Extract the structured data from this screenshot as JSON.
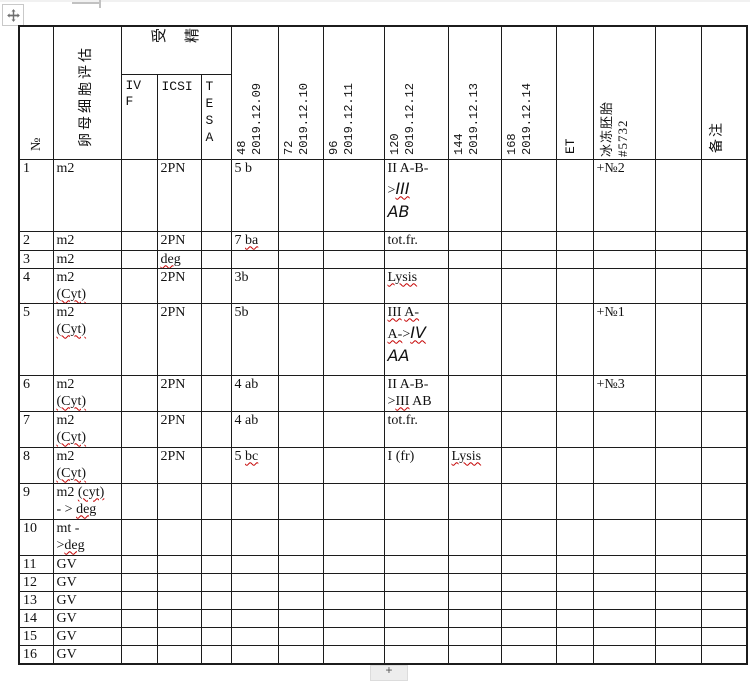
{
  "misc": {
    "plus": "+"
  },
  "colors": {
    "grid": "#1c1c1c",
    "squiggle_red": "#c40000",
    "handle_border": "#c9c9c9",
    "plus_bg": "#ededed"
  },
  "icons": {
    "move_handle": "move-cross-icon",
    "plus": "plus-icon"
  },
  "table": {
    "header": {
      "no": "№",
      "oocyte": "卵母细胞评估",
      "fert": "受精",
      "fert_sub": [
        "IVF",
        "ICSI",
        "TESA"
      ],
      "days": [
        [
          "48",
          "2019.12.09"
        ],
        [
          "72",
          "2019.12.10"
        ],
        [
          "96",
          "2019.12.11"
        ],
        [
          "120",
          "2019.12.12"
        ],
        [
          "144",
          "2019.12.13"
        ],
        [
          "168",
          "2019.12.14"
        ]
      ],
      "et": "ET",
      "frozen": [
        "冰冻胚胎",
        "#5732"
      ],
      "blank": "",
      "remark": "备注"
    },
    "rows": [
      {
        "no": "1",
        "oocyte": [
          [
            {
              "t": "m2"
            }
          ]
        ],
        "icsi": [
          [
            {
              "t": "2PN"
            }
          ]
        ],
        "d48": [
          [
            {
              "t": "5 b"
            }
          ]
        ],
        "d120": [
          [
            {
              "t": "II A-B-"
            }
          ],
          [
            {
              "t": ">"
            },
            {
              "t": "III",
              "f": "sq"
            }
          ],
          [
            {
              "t": "AB",
              "f": "s"
            }
          ]
        ],
        "frozen": [
          [
            {
              "t": "+№2"
            }
          ]
        ]
      },
      {
        "no": "2",
        "oocyte": [
          [
            {
              "t": "m2"
            }
          ]
        ],
        "icsi": [
          [
            {
              "t": "2PN"
            }
          ]
        ],
        "d48": [
          [
            {
              "t": "7 "
            },
            {
              "t": "ba",
              "f": "q"
            }
          ]
        ],
        "d120": [
          [
            {
              "t": "tot.fr."
            }
          ]
        ]
      },
      {
        "no": "3",
        "oocyte": [
          [
            {
              "t": "m2"
            }
          ]
        ],
        "icsi": [
          [
            {
              "t": "deg",
              "f": "q"
            }
          ]
        ]
      },
      {
        "no": "4",
        "oocyte": [
          [
            {
              "t": "m2"
            }
          ],
          [
            {
              "t": "(Cyt)",
              "f": "q"
            }
          ]
        ],
        "icsi": [
          [
            {
              "t": "2PN"
            }
          ]
        ],
        "d48": [
          [
            {
              "t": "3b"
            }
          ]
        ],
        "d120": [
          [
            {
              "t": "Lysis",
              "f": "q"
            }
          ]
        ]
      },
      {
        "no": "5",
        "oocyte": [
          [
            {
              "t": "m2"
            }
          ],
          [
            {
              "t": "(Cyt)",
              "f": "q"
            }
          ]
        ],
        "icsi": [
          [
            {
              "t": "2PN"
            }
          ]
        ],
        "d48": [
          [
            {
              "t": "5b"
            }
          ]
        ],
        "d120": [
          [
            {
              "t": "III",
              "f": "q"
            },
            {
              "t": " "
            },
            {
              "t": "A-",
              "f": "q"
            }
          ],
          [
            {
              "t": "A-",
              "f": "q"
            },
            {
              "t": ">"
            },
            {
              "t": "IV",
              "f": "sq"
            }
          ],
          [
            {
              "t": "AA",
              "f": "s"
            }
          ]
        ],
        "frozen": [
          [
            {
              "t": "+№1"
            }
          ]
        ]
      },
      {
        "no": "6",
        "oocyte": [
          [
            {
              "t": "m2"
            }
          ],
          [
            {
              "t": "(Cyt)",
              "f": "q"
            }
          ]
        ],
        "icsi": [
          [
            {
              "t": "2PN"
            }
          ]
        ],
        "d48": [
          [
            {
              "t": "4 ab"
            }
          ]
        ],
        "d120": [
          [
            {
              "t": "II A-B-"
            }
          ],
          [
            {
              "t": ">"
            },
            {
              "t": "III",
              "f": "q"
            },
            {
              "t": " AB"
            }
          ]
        ],
        "frozen": [
          [
            {
              "t": "+№3"
            }
          ]
        ]
      },
      {
        "no": "7",
        "oocyte": [
          [
            {
              "t": "m2"
            }
          ],
          [
            {
              "t": "(Cyt)",
              "f": "q"
            }
          ]
        ],
        "icsi": [
          [
            {
              "t": "2PN"
            }
          ]
        ],
        "d48": [
          [
            {
              "t": "4 ab"
            }
          ]
        ],
        "d120": [
          [
            {
              "t": "tot.fr."
            }
          ]
        ]
      },
      {
        "no": "8",
        "oocyte": [
          [
            {
              "t": "m2"
            }
          ],
          [
            {
              "t": "(Cyt)",
              "f": "q"
            }
          ]
        ],
        "icsi": [
          [
            {
              "t": "2PN"
            }
          ]
        ],
        "d48": [
          [
            {
              "t": "5 "
            },
            {
              "t": "bc",
              "f": "q"
            }
          ]
        ],
        "d120": [
          [
            {
              "t": "I (fr)"
            }
          ]
        ],
        "d144": [
          [
            {
              "t": "Lysis",
              "f": "q"
            }
          ]
        ]
      },
      {
        "no": "9",
        "oocyte": [
          [
            {
              "t": "m2 "
            },
            {
              "t": "(cyt)",
              "f": "q"
            }
          ],
          [
            {
              "t": "- > "
            },
            {
              "t": "deg",
              "f": "q"
            }
          ]
        ]
      },
      {
        "no": "10",
        "oocyte": [
          [
            {
              "t": "mt -"
            }
          ],
          [
            {
              "t": ">"
            },
            {
              "t": "deg",
              "f": "q"
            }
          ]
        ]
      },
      {
        "no": "11",
        "oocyte": [
          [
            {
              "t": "GV"
            }
          ]
        ]
      },
      {
        "no": "12",
        "oocyte": [
          [
            {
              "t": "GV"
            }
          ]
        ]
      },
      {
        "no": "13",
        "oocyte": [
          [
            {
              "t": "GV"
            }
          ]
        ]
      },
      {
        "no": "14",
        "oocyte": [
          [
            {
              "t": "GV"
            }
          ]
        ]
      },
      {
        "no": "15",
        "oocyte": [
          [
            {
              "t": "GV"
            }
          ]
        ]
      },
      {
        "no": "16",
        "oocyte": [
          [
            {
              "t": "GV"
            }
          ]
        ]
      }
    ]
  }
}
